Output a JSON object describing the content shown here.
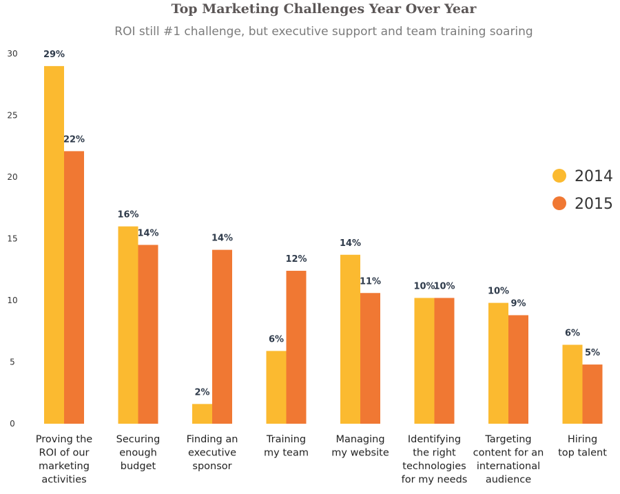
{
  "chart_data": {
    "type": "bar",
    "title": "Top Marketing Challenges Year Over Year",
    "subtitle": "ROI still #1 challenge, but executive support and team training soaring",
    "categories": [
      [
        "Proving the",
        "ROI of our",
        "marketing",
        "activities"
      ],
      [
        "Securing",
        "enough",
        "budget"
      ],
      [
        "Finding an",
        "executive",
        "sponsor"
      ],
      [
        "Training",
        "my team"
      ],
      [
        "Managing",
        "my website"
      ],
      [
        "Identifying",
        "the right",
        "technologies",
        "for my needs"
      ],
      [
        "Targeting",
        "content for an",
        "international",
        "audience"
      ],
      [
        "Hiring",
        "top talent"
      ]
    ],
    "series": [
      {
        "name": "2014",
        "color": "#FBBA30",
        "values": [
          29,
          16,
          1.6,
          5.9,
          13.7,
          10.2,
          9.8,
          6.4
        ],
        "labels": [
          "29%",
          "16%",
          "2%",
          "6%",
          "14%",
          "10%",
          "10%",
          "6%"
        ]
      },
      {
        "name": "2015",
        "color": "#F07833",
        "values": [
          22.1,
          14.5,
          14.1,
          12.4,
          10.6,
          10.2,
          8.8,
          4.8
        ],
        "labels": [
          "22%",
          "14%",
          "14%",
          "12%",
          "11%",
          "10%",
          "9%",
          "5%"
        ]
      }
    ],
    "ylim": [
      0,
      30
    ],
    "yticks": [
      0,
      5,
      10,
      15,
      20,
      25,
      30
    ],
    "grid": false,
    "legend": "right"
  }
}
